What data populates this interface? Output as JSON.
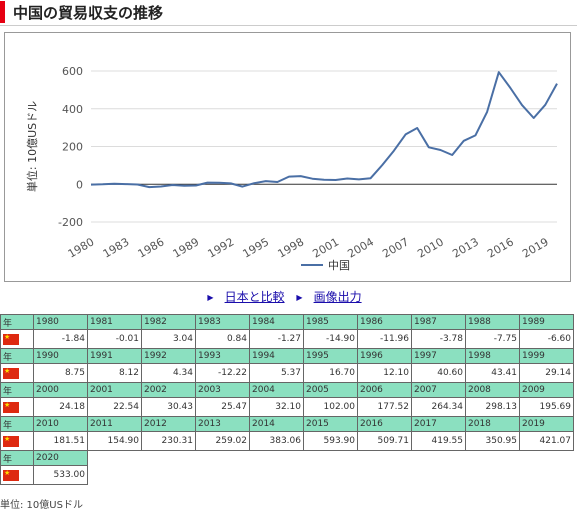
{
  "page": {
    "title": "中国の貿易収支の推移",
    "links": [
      "日本と比較",
      "画像出力"
    ],
    "unit_note": "単位: 10億USドル",
    "year_label": "年"
  },
  "colors": {
    "accent": "#e60012",
    "line": "#4a6fa5",
    "table_header": "#8be0c0",
    "link": "#1a0dab"
  },
  "icons": {
    "flag": "china-flag-icon",
    "link_arrow": "link-arrow-icon"
  },
  "chart_data": {
    "type": "line",
    "title": "",
    "xlabel": "",
    "ylabel": "単位: 10億USドル",
    "ylim": [
      -200,
      600
    ],
    "yticks": [
      -200,
      0,
      200,
      400,
      600
    ],
    "xticks": [
      1980,
      1983,
      1986,
      1989,
      1992,
      1995,
      1998,
      2001,
      2004,
      2007,
      2010,
      2013,
      2016,
      2019
    ],
    "grid": true,
    "legend": "bottom",
    "x": [
      1980,
      1981,
      1982,
      1983,
      1984,
      1985,
      1986,
      1987,
      1988,
      1989,
      1990,
      1991,
      1992,
      1993,
      1994,
      1995,
      1996,
      1997,
      1998,
      1999,
      2000,
      2001,
      2002,
      2003,
      2004,
      2005,
      2006,
      2007,
      2008,
      2009,
      2010,
      2011,
      2012,
      2013,
      2014,
      2015,
      2016,
      2017,
      2018,
      2019,
      2020
    ],
    "series": [
      {
        "name": "中国",
        "values": [
          -1.84,
          -0.01,
          3.04,
          0.84,
          -1.27,
          -14.9,
          -11.96,
          -3.78,
          -7.75,
          -6.6,
          8.75,
          8.12,
          4.34,
          -12.22,
          5.37,
          16.7,
          12.1,
          40.6,
          43.41,
          29.14,
          24.18,
          22.54,
          30.43,
          25.47,
          32.1,
          102.0,
          177.52,
          264.34,
          298.13,
          195.69,
          181.51,
          154.9,
          230.31,
          259.02,
          383.06,
          593.9,
          509.71,
          419.55,
          350.95,
          421.07,
          533.0
        ]
      }
    ]
  },
  "table": {
    "rows": [
      {
        "years": [
          "1980",
          "1981",
          "1982",
          "1983",
          "1984",
          "1985",
          "1986",
          "1987",
          "1988",
          "1989"
        ],
        "values": [
          "-1.84",
          "-0.01",
          "3.04",
          "0.84",
          "-1.27",
          "-14.90",
          "-11.96",
          "-3.78",
          "-7.75",
          "-6.60"
        ]
      },
      {
        "years": [
          "1990",
          "1991",
          "1992",
          "1993",
          "1994",
          "1995",
          "1996",
          "1997",
          "1998",
          "1999"
        ],
        "values": [
          "8.75",
          "8.12",
          "4.34",
          "-12.22",
          "5.37",
          "16.70",
          "12.10",
          "40.60",
          "43.41",
          "29.14"
        ]
      },
      {
        "years": [
          "2000",
          "2001",
          "2002",
          "2003",
          "2004",
          "2005",
          "2006",
          "2007",
          "2008",
          "2009"
        ],
        "values": [
          "24.18",
          "22.54",
          "30.43",
          "25.47",
          "32.10",
          "102.00",
          "177.52",
          "264.34",
          "298.13",
          "195.69"
        ]
      },
      {
        "years": [
          "2010",
          "2011",
          "2012",
          "2013",
          "2014",
          "2015",
          "2016",
          "2017",
          "2018",
          "2019"
        ],
        "values": [
          "181.51",
          "154.90",
          "230.31",
          "259.02",
          "383.06",
          "593.90",
          "509.71",
          "419.55",
          "350.95",
          "421.07"
        ]
      },
      {
        "years": [
          "2020"
        ],
        "values": [
          "533.00"
        ]
      }
    ]
  }
}
